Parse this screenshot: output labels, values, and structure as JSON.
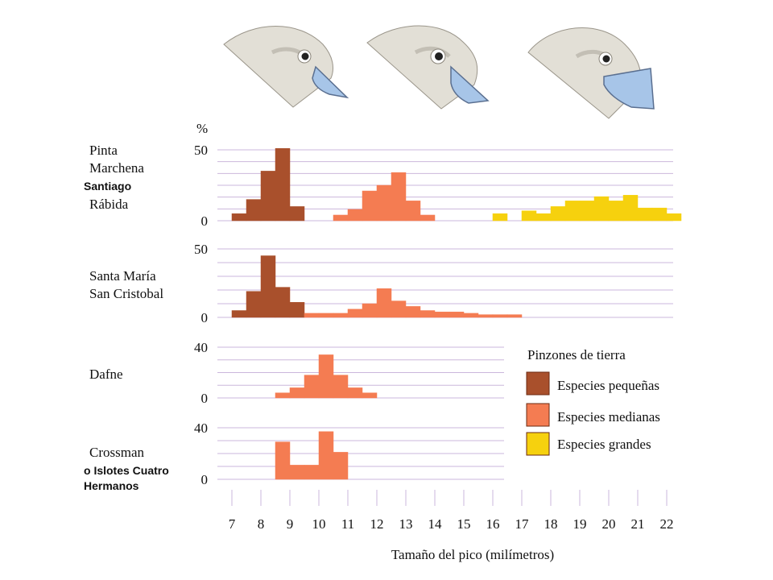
{
  "colors": {
    "small": "#a9502c",
    "medium": "#f47c52",
    "large": "#f6d10e",
    "outline": "#6b2a12",
    "grid": "#cbb7dc",
    "beak": "#a7c5e8",
    "head": "#e2dfd6"
  },
  "illustrations": [
    {
      "name": "small-beak-finch-head-icon",
      "size": "small"
    },
    {
      "name": "medium-beak-finch-head-icon",
      "size": "medium"
    },
    {
      "name": "large-beak-finch-head-icon",
      "size": "large"
    }
  ],
  "percent_symbol": "%",
  "panel_labels": [
    [
      "Pinta",
      "Marchena",
      "Santiago",
      "Rábida"
    ],
    [
      "Santa María",
      "San Cristobal"
    ],
    [
      "Dafne"
    ],
    [
      "Crossman",
      "o Islotes Cuatro",
      "Hermanos"
    ]
  ],
  "legend": {
    "title": "Pinzones de tierra",
    "items": [
      "Especies pequeñas",
      "Especies medianas",
      "Especies grandes"
    ]
  },
  "chart_data": {
    "type": "bar",
    "xlabel": "Tamaño del pico (milímetros)",
    "x_ticks": [
      "7",
      "8",
      "9",
      "10",
      "11",
      "12",
      "13",
      "14",
      "15",
      "16",
      "17",
      "18",
      "19",
      "20",
      "21",
      "22"
    ],
    "xlim": [
      7,
      22
    ],
    "bin_width_mm": 0.5,
    "panels": [
      {
        "islands": [
          "Pinta",
          "Marchena",
          "Santiago",
          "Rábida"
        ],
        "ylim": [
          0,
          50
        ],
        "yticks": [
          "0",
          "50"
        ],
        "series": [
          {
            "name": "Especies pequeñas",
            "key": "small",
            "x": [
              7.0,
              7.5,
              8.0,
              8.5,
              9.0
            ],
            "values": [
              5,
              15,
              35,
              51,
              10
            ]
          },
          {
            "name": "Especies medianas",
            "key": "medium",
            "x": [
              10.5,
              11.0,
              11.5,
              12.0,
              12.5,
              13.0,
              13.5,
              14.0
            ],
            "values": [
              4,
              8,
              21,
              25,
              34,
              14,
              4,
              0
            ]
          },
          {
            "name": "Especies grandes",
            "key": "large",
            "x": [
              16.0,
              16.5,
              17.0,
              17.5,
              18.0,
              18.5,
              19.0,
              19.5,
              20.0,
              20.5,
              21.0,
              21.5,
              22.0
            ],
            "values": [
              5,
              0,
              7,
              5,
              10,
              14,
              14,
              17,
              14,
              18,
              9,
              9,
              5
            ]
          }
        ]
      },
      {
        "islands": [
          "Santa María",
          "San Cristobal"
        ],
        "ylim": [
          0,
          50
        ],
        "yticks": [
          "0",
          "50"
        ],
        "series": [
          {
            "name": "Especies pequeñas",
            "key": "small",
            "x": [
              7.0,
              7.5,
              8.0,
              8.5,
              9.0
            ],
            "values": [
              5,
              19,
              45,
              22,
              11
            ]
          },
          {
            "name": "Especies medianas",
            "key": "medium",
            "x": [
              9.5,
              10.0,
              10.5,
              11.0,
              11.5,
              12.0,
              12.5,
              13.0,
              13.5,
              14.0,
              14.5,
              15.0,
              15.5,
              16.0,
              16.5
            ],
            "values": [
              3,
              3,
              3,
              6,
              10,
              21,
              12,
              8,
              5,
              4,
              4,
              3,
              2,
              2,
              2
            ]
          }
        ]
      },
      {
        "islands": [
          "Dafne"
        ],
        "ylim": [
          0,
          40
        ],
        "yticks": [
          "0",
          "40"
        ],
        "series": [
          {
            "name": "Especies medianas",
            "key": "medium",
            "x": [
              8.5,
              9.0,
              9.5,
              10.0,
              10.5,
              11.0,
              11.5
            ],
            "values": [
              4,
              8,
              18,
              34,
              18,
              8,
              4
            ]
          }
        ]
      },
      {
        "islands": [
          "Crossman",
          "o Islotes Cuatro",
          "Hermanos"
        ],
        "ylim": [
          0,
          40
        ],
        "yticks": [
          "0",
          "40"
        ],
        "series": [
          {
            "name": "Especies medianas",
            "key": "medium",
            "x": [
              8.5,
              9.0,
              9.5,
              10.0,
              10.5
            ],
            "values": [
              29,
              11,
              11,
              37,
              21
            ]
          }
        ]
      }
    ]
  }
}
